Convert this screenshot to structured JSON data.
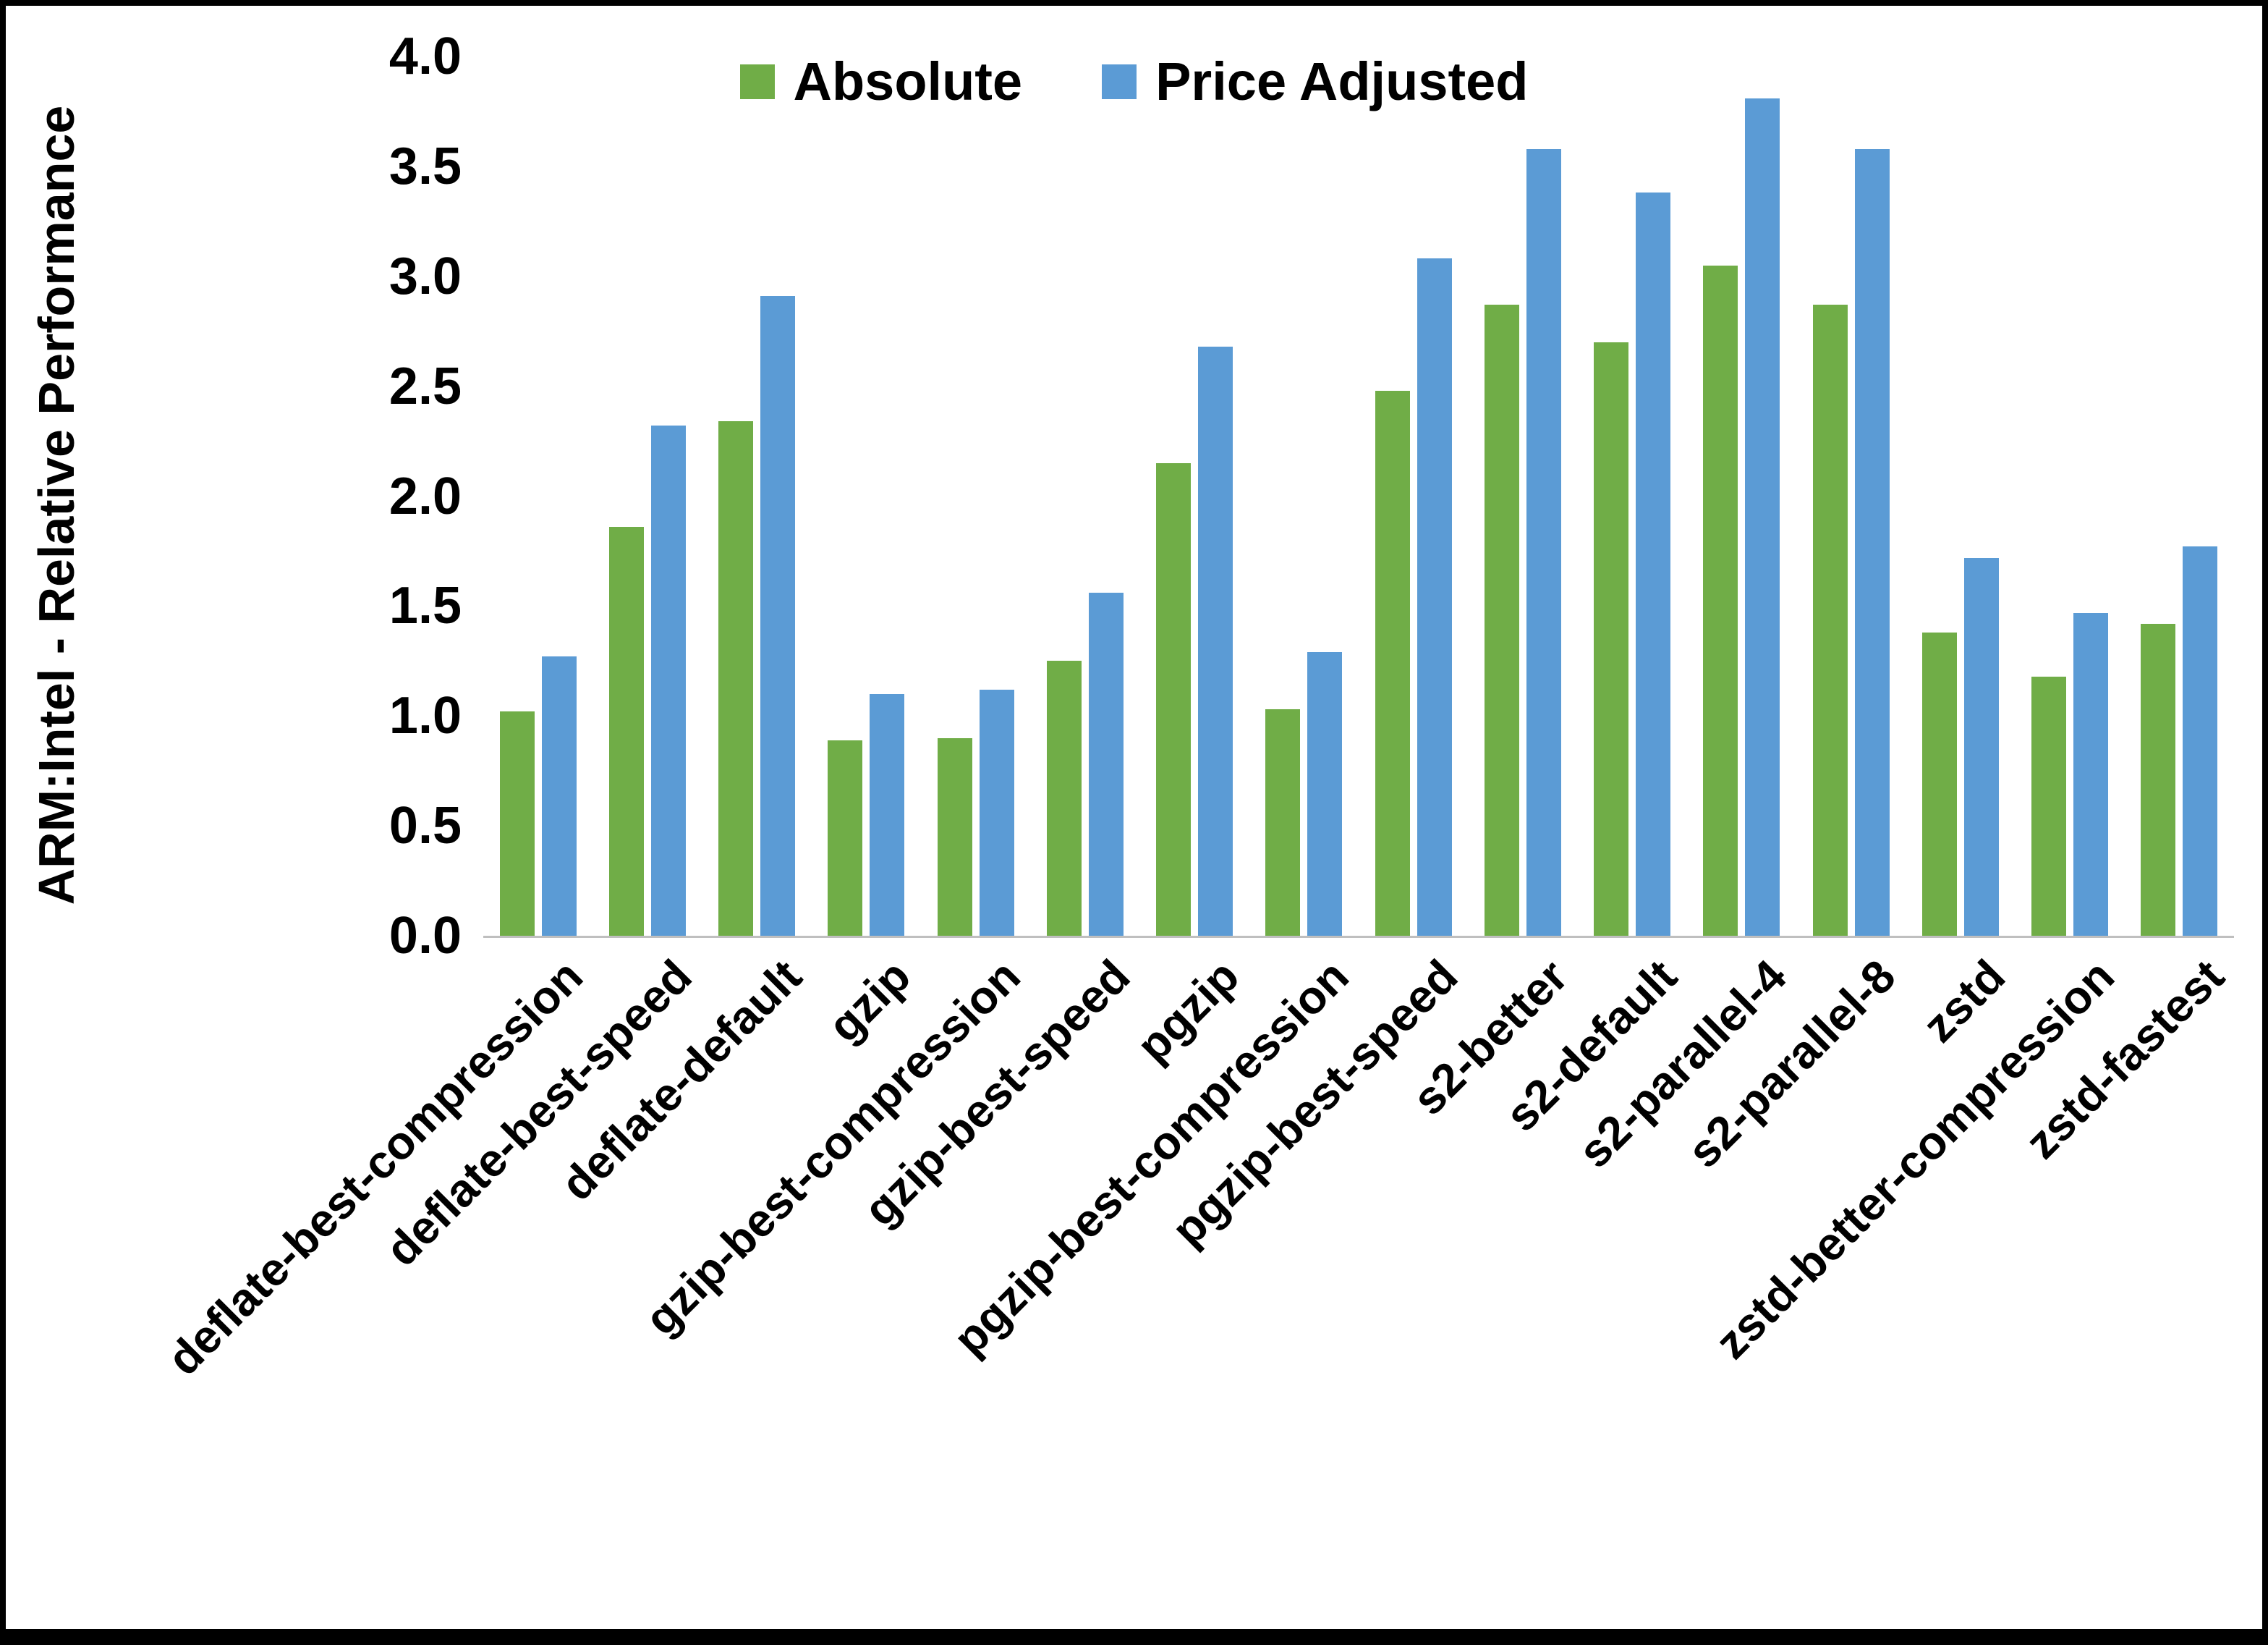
{
  "chart_data": {
    "type": "bar",
    "title": "",
    "xlabel": "",
    "ylabel": "ARM:Intel - Relative Performance",
    "ylim": [
      0,
      4
    ],
    "ytick_step": 0.5,
    "grid": false,
    "legend_position": "top-center",
    "categories": [
      "deflate-best-compression",
      "deflate-best-speed",
      "deflate-default",
      "gzip",
      "gzip-best-compression",
      "gzip-best-speed",
      "pgzip",
      "pgzip-best-compression",
      "pgzip-best-speed",
      "s2-better",
      "s2-default",
      "s2-parallel-4",
      "s2-parallel-8",
      "zstd",
      "zstd-better-compression",
      "zstd-fastest"
    ],
    "series": [
      {
        "name": "Absolute",
        "color": "#70AD47",
        "values": [
          1.02,
          1.86,
          2.34,
          0.89,
          0.9,
          1.25,
          2.15,
          1.03,
          2.48,
          2.87,
          2.7,
          3.05,
          2.87,
          1.38,
          1.18,
          1.42
        ]
      },
      {
        "name": "Price Adjusted",
        "color": "#5B9BD5",
        "values": [
          1.27,
          2.32,
          2.91,
          1.1,
          1.12,
          1.56,
          2.68,
          1.29,
          3.08,
          3.58,
          3.38,
          3.81,
          3.58,
          1.72,
          1.47,
          1.77
        ]
      }
    ]
  }
}
